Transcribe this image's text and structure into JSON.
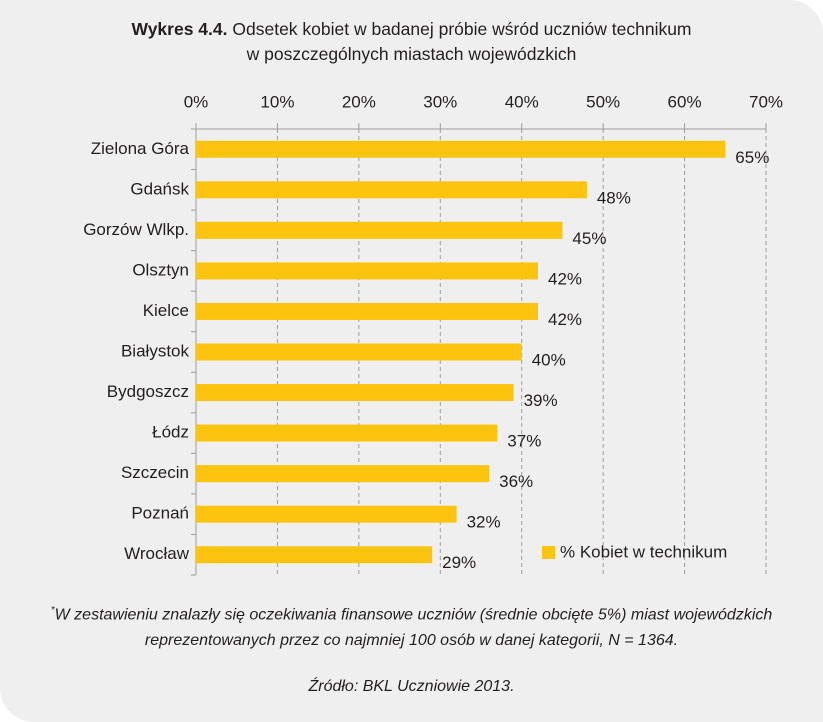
{
  "chart_data": {
    "type": "barh",
    "title_number": "Wykres 4.4.",
    "title": "Odsetek kobiet w badanej próbie wśród uczniów technikum w poszczególnych miastach wojewódzkich",
    "categories": [
      "Zielona Góra",
      "Gdańsk",
      "Gorzów Wlkp.",
      "Olsztyn",
      "Kielce",
      "Białystok",
      "Bydgoszcz",
      "Łódz",
      "Szczecin",
      "Poznań",
      "Wrocław"
    ],
    "series": [
      {
        "name": "% Kobiet w technikum",
        "color": "#fcc40f",
        "values": [
          65,
          48,
          45,
          42,
          42,
          40,
          39,
          37,
          36,
          32,
          29
        ],
        "value_labels": [
          "65%",
          "48%",
          "45%",
          "42%",
          "42%",
          "40%",
          "39%",
          "37%",
          "36%",
          "32%",
          "29%"
        ]
      }
    ],
    "xlim": [
      0,
      70
    ],
    "xticks": [
      {
        "value": 0,
        "label": "0%"
      },
      {
        "value": 10,
        "label": "10%"
      },
      {
        "value": 20,
        "label": "20%"
      },
      {
        "value": 30,
        "label": "30%"
      },
      {
        "value": 40,
        "label": "40%"
      },
      {
        "value": 50,
        "label": "50%"
      },
      {
        "value": 60,
        "label": "60%"
      },
      {
        "value": 70,
        "label": "70%"
      }
    ],
    "grid": true,
    "legend": "lower right",
    "footnote_marker": "*",
    "footnote": "W zestawieniu znalazły się oczekiwania finansowe uczniów (średnie obcięte 5%) miast wojewódzkich reprezentowanych przez co najmniej 100 osób w danej kategorii, N = 1364.",
    "source": "Źródło: BKL Uczniowie 2013."
  }
}
